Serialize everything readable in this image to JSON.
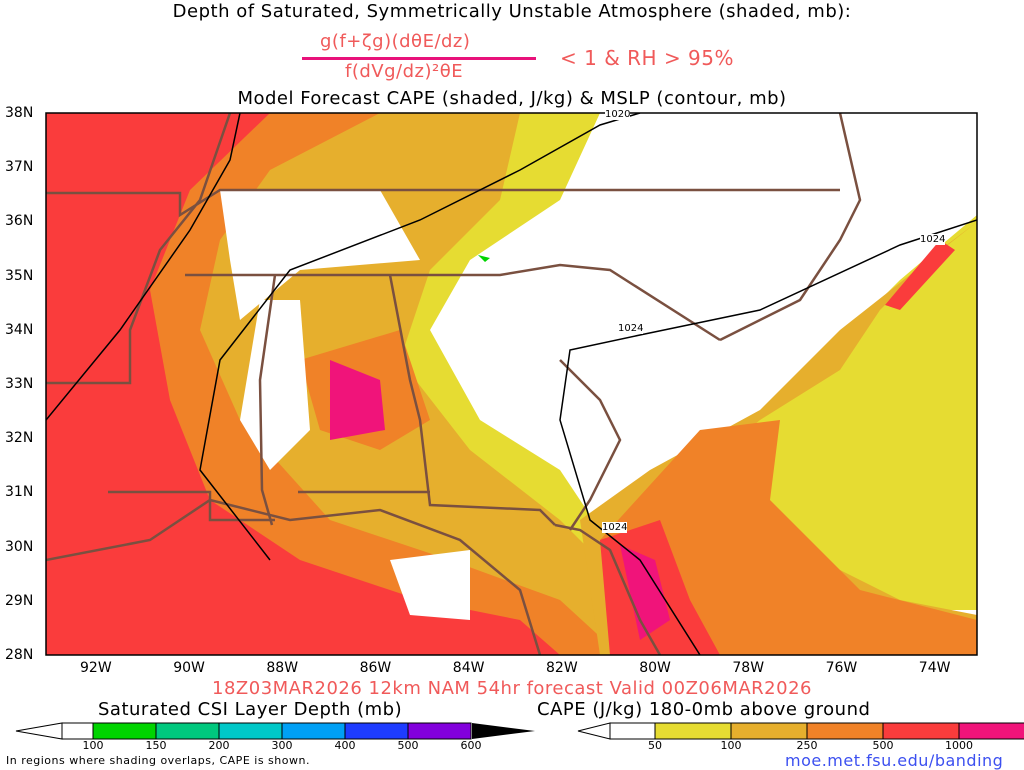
{
  "titles": {
    "line1": "Depth of Saturated, Symmetrically Unstable Atmosphere (shaded, mb):",
    "numerator": "g(f+ζg)(dθE/dz)",
    "denominator": "f(dVg/dz)²θE",
    "condition": "< 1 & RH > 95%",
    "line3": "Model Forecast CAPE (shaded, J/kg) & MSLP (contour, mb)",
    "run": "18Z03MAR2026 12km NAM 54hr forecast Valid 00Z06MAR2026"
  },
  "axes": {
    "lat_labels": [
      "38N",
      "37N",
      "36N",
      "35N",
      "34N",
      "33N",
      "32N",
      "31N",
      "30N",
      "29N",
      "28N"
    ],
    "lon_labels": [
      "92W",
      "90W",
      "88W",
      "86W",
      "84W",
      "82W",
      "80W",
      "78W",
      "76W",
      "74W"
    ]
  },
  "contours": {
    "labels": [
      "1020",
      "1024",
      "1024",
      "1024"
    ]
  },
  "colorbars": {
    "csi": {
      "title": "Saturated CSI Layer Depth (mb)",
      "labels": [
        "100",
        "150",
        "200",
        "300",
        "400",
        "500",
        "600"
      ],
      "colors": [
        "#00d400",
        "#00c87e",
        "#00c8c8",
        "#00a0f5",
        "#1e3cff",
        "#8200dc"
      ]
    },
    "cape": {
      "title": "CAPE (J/kg) 180-0mb above ground",
      "labels": [
        "50",
        "100",
        "250",
        "500",
        "1000"
      ],
      "colors": [
        "#e6dc32",
        "#e6af2d",
        "#f08228",
        "#fa3c3c",
        "#f0147a"
      ]
    }
  },
  "footer": {
    "note": "In regions where shading overlaps, CAPE is shown.",
    "url": "moe.met.fsu.edu/banding"
  }
}
